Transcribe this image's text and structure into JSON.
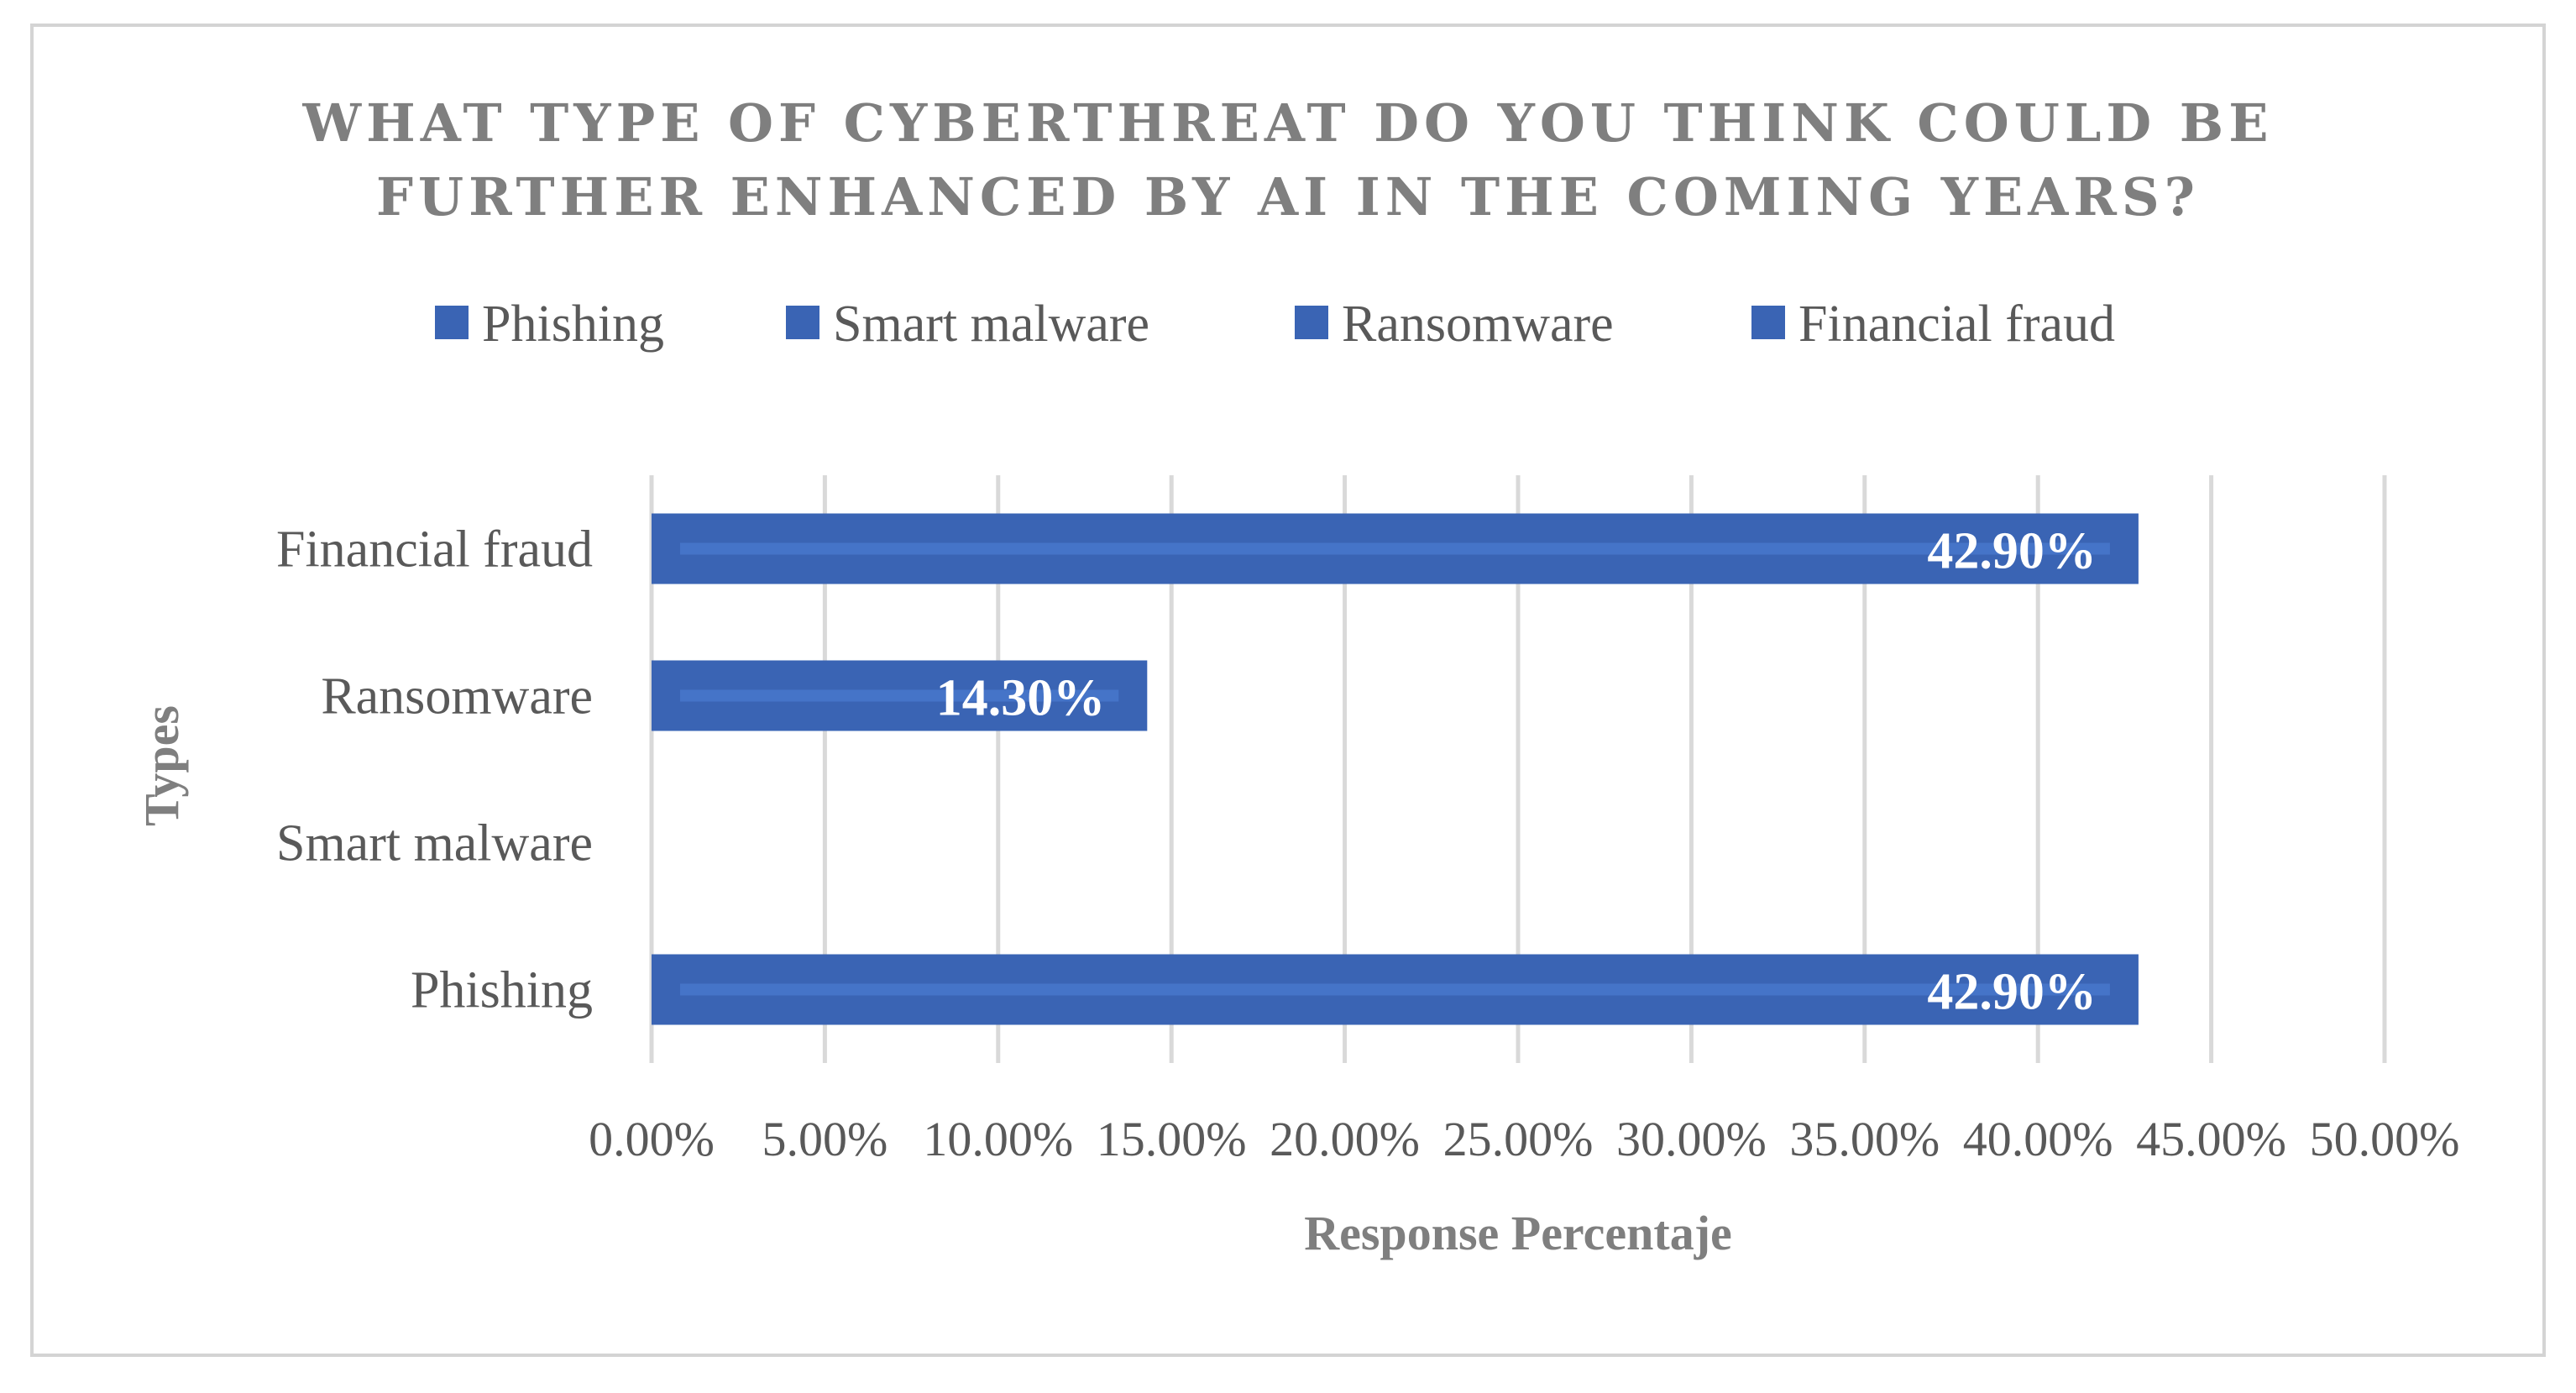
{
  "chart_data": {
    "type": "bar",
    "orientation": "horizontal",
    "title_lines": [
      "WHAT TYPE OF CYBERTHREAT DO YOU THINK COULD BE",
      "FURTHER ENHANCED BY AI IN THE COMING YEARS?"
    ],
    "categories": [
      "Phishing",
      "Smart malware",
      "Ransomware",
      "Financial fraud"
    ],
    "values": [
      42.9,
      0,
      14.3,
      42.9
    ],
    "data_labels": [
      "42.90%",
      "",
      "14.30%",
      "42.90%"
    ],
    "legend": [
      "Phishing",
      "Smart malware",
      "Ransomware",
      "Financial fraud"
    ],
    "legend_position": "top",
    "xlabel": "Response Percentaje",
    "ylabel": "Types",
    "xlim": [
      0,
      50
    ],
    "x_ticks": [
      "0.00%",
      "5.00%",
      "10.00%",
      "15.00%",
      "20.00%",
      "25.00%",
      "30.00%",
      "35.00%",
      "40.00%",
      "45.00%",
      "50.00%"
    ],
    "grid": true,
    "colors": {
      "bar": "#3a64b4",
      "bar_highlight": "#4a7bd0",
      "grid": "#d9d9d9",
      "title": "#7f7f7f",
      "text": "#595959"
    }
  }
}
